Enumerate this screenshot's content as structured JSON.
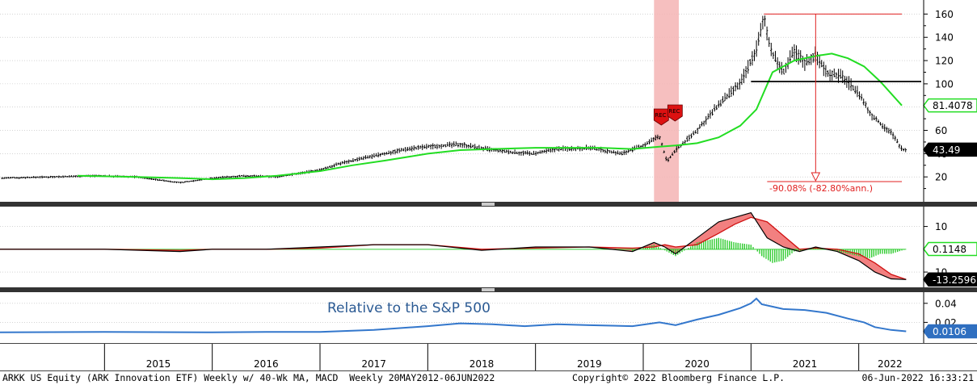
{
  "footer": {
    "left": "ARKK US Equity (ARK Innovation ETF) Weekly w/ 40-Wk MA, MACD  Weekly 20MAY2012-06JUN2022",
    "center": "Copyright© 2022 Bloomberg Finance L.P.",
    "right": "06-Jun-2022 16:33:21"
  },
  "colors": {
    "price": "#000000",
    "ma": "#22dd22",
    "recession_band": "#f4b4b4",
    "drawdown": "#e02020",
    "macd_fill": "#f28080",
    "histogram": "#33cc33",
    "relative": "#3377cc",
    "relative_text": "#2b5a93",
    "grid": "#bbbbbb",
    "separator": "#444444"
  },
  "chart_data": [
    {
      "type": "line",
      "panel": "price",
      "title": "",
      "ylim": [
        0,
        170
      ],
      "yticks": [
        "20",
        "40",
        "60",
        "80",
        "100",
        "120",
        "140",
        "160"
      ],
      "x_type": "decimal-year",
      "x_labels": [
        "2015",
        "2016",
        "2017",
        "2018",
        "2019",
        "2020",
        "2021",
        "2022"
      ],
      "recession_band": {
        "from": 2020.1,
        "to": 2020.33,
        "labels": [
          "REC",
          "REC"
        ]
      },
      "horizontal_line": {
        "value": 102
      },
      "drawdown": {
        "peak": 160,
        "trough": 16,
        "label": "-90.08% (-82.80%ann.)"
      },
      "series": [
        {
          "name": "",
          "style": "bars",
          "x": [
            2014.05,
            2014.5,
            2014.9,
            2015.3,
            2015.7,
            2016.0,
            2016.3,
            2016.6,
            2017.0,
            2017.2,
            2017.5,
            2017.8,
            2018.0,
            2018.3,
            2018.6,
            2018.8,
            2019.0,
            2019.2,
            2019.5,
            2019.8,
            2020.0,
            2020.15,
            2020.22,
            2020.3,
            2020.5,
            2020.7,
            2020.9,
            2021.05,
            2021.12,
            2021.2,
            2021.3,
            2021.4,
            2021.5,
            2021.6,
            2021.7,
            2021.85,
            2022.0,
            2022.1,
            2022.2,
            2022.3,
            2022.4,
            2022.44
          ],
          "y": [
            19,
            20,
            21,
            20,
            15,
            19,
            21,
            20,
            26,
            32,
            38,
            44,
            46,
            48,
            43,
            41,
            40,
            44,
            45,
            40,
            47,
            55,
            33,
            43,
            60,
            82,
            100,
            130,
            156,
            125,
            110,
            128,
            118,
            125,
            110,
            106,
            92,
            75,
            66,
            58,
            44,
            43.5
          ]
        },
        {
          "name": "",
          "style": "line",
          "x": [
            2014.75,
            2015.3,
            2015.7,
            2016.0,
            2016.3,
            2016.6,
            2017.0,
            2017.3,
            2017.6,
            2018.0,
            2018.3,
            2018.6,
            2019.0,
            2019.3,
            2019.6,
            2019.9,
            2020.15,
            2020.3,
            2020.5,
            2020.7,
            2020.9,
            2021.05,
            2021.2,
            2021.4,
            2021.6,
            2021.75,
            2021.9,
            2022.05,
            2022.2,
            2022.4
          ],
          "y": [
            21,
            20,
            19,
            18,
            19,
            21,
            25,
            30,
            34,
            40,
            43,
            44,
            45,
            45,
            45,
            44,
            46,
            47,
            49,
            54,
            64,
            78,
            110,
            120,
            124,
            126,
            122,
            115,
            102,
            81.4
          ]
        }
      ],
      "last_values": [
        {
          "label": "81.4078",
          "value": 81.4078,
          "style": "green"
        },
        {
          "label": "43.49",
          "value": 43.49,
          "style": "black"
        }
      ]
    },
    {
      "type": "line",
      "panel": "macd",
      "title": "",
      "ylim": [
        -16,
        18
      ],
      "yticks": [
        "10",
        "10"
      ],
      "series": [
        {
          "name": "",
          "style": "line",
          "x": [
            2014.0,
            2015.0,
            2015.7,
            2016.0,
            2016.5,
            2017.0,
            2017.5,
            2018.0,
            2018.5,
            2019.0,
            2019.5,
            2019.9,
            2020.1,
            2020.2,
            2020.3,
            2020.5,
            2020.7,
            2020.85,
            2021.0,
            2021.15,
            2021.3,
            2021.45,
            2021.6,
            2021.8,
            2022.0,
            2022.15,
            2022.3,
            2022.44
          ],
          "y": [
            0,
            0,
            -1,
            0,
            0,
            1,
            2,
            2,
            -0.5,
            1,
            1,
            -1,
            3,
            1,
            -2,
            5,
            12,
            14,
            16,
            5,
            1,
            -1,
            1,
            -1,
            -5,
            -10,
            -13,
            -13.26
          ]
        },
        {
          "name": "",
          "style": "line",
          "x": [
            2014.0,
            2015.0,
            2015.7,
            2016.0,
            2016.5,
            2017.0,
            2017.5,
            2018.0,
            2018.5,
            2019.0,
            2019.5,
            2019.9,
            2020.1,
            2020.2,
            2020.3,
            2020.5,
            2020.7,
            2020.85,
            2021.0,
            2021.15,
            2021.3,
            2021.45,
            2021.6,
            2021.8,
            2022.0,
            2022.15,
            2022.3,
            2022.44
          ],
          "y": [
            0,
            0,
            -0.5,
            0,
            0,
            0.5,
            2,
            2,
            0,
            0.5,
            1,
            0.5,
            1,
            2,
            1,
            2,
            7,
            11,
            14,
            12,
            6,
            0,
            0.5,
            0,
            -2,
            -6,
            -11,
            -13.26
          ]
        },
        {
          "name": "",
          "style": "histogram",
          "x": [
            2019.9,
            2020.1,
            2020.3,
            2020.5,
            2020.7,
            2020.85,
            2021.0,
            2021.1,
            2021.2,
            2021.3,
            2021.4,
            2021.6,
            2021.8,
            2022.0,
            2022.1,
            2022.2,
            2022.3,
            2022.44
          ],
          "y": [
            -1,
            2,
            -3,
            3,
            5,
            3,
            2,
            -3,
            -6,
            -5,
            -1,
            0.5,
            -1,
            -3,
            -4,
            -2,
            -2,
            0
          ]
        }
      ],
      "last_values": [
        {
          "label": "0.1148",
          "value": 0.1148,
          "style": "green"
        },
        {
          "label": "-13.2596",
          "value": -13.2596,
          "style": "black"
        }
      ]
    },
    {
      "type": "line",
      "panel": "relative",
      "title": "Relative to the S&P 500",
      "ylim": [
        0,
        0.05
      ],
      "yticks": [
        "0.02",
        "0.04"
      ],
      "series": [
        {
          "name": "",
          "style": "line",
          "x": [
            2014.0,
            2015.0,
            2016.0,
            2016.5,
            2017.0,
            2017.5,
            2018.0,
            2018.3,
            2018.6,
            2018.9,
            2019.2,
            2019.5,
            2019.9,
            2020.15,
            2020.3,
            2020.5,
            2020.7,
            2020.9,
            2021.0,
            2021.05,
            2021.1,
            2021.3,
            2021.5,
            2021.7,
            2021.9,
            2022.05,
            2022.15,
            2022.3,
            2022.44
          ],
          "y": [
            0.0095,
            0.01,
            0.0095,
            0.01,
            0.01,
            0.012,
            0.016,
            0.019,
            0.018,
            0.016,
            0.018,
            0.017,
            0.016,
            0.02,
            0.017,
            0.023,
            0.028,
            0.035,
            0.04,
            0.045,
            0.039,
            0.034,
            0.033,
            0.03,
            0.024,
            0.02,
            0.015,
            0.012,
            0.0106
          ]
        }
      ],
      "last_values": [
        {
          "label": "0.0106",
          "value": 0.0106,
          "style": "blue"
        }
      ]
    }
  ]
}
